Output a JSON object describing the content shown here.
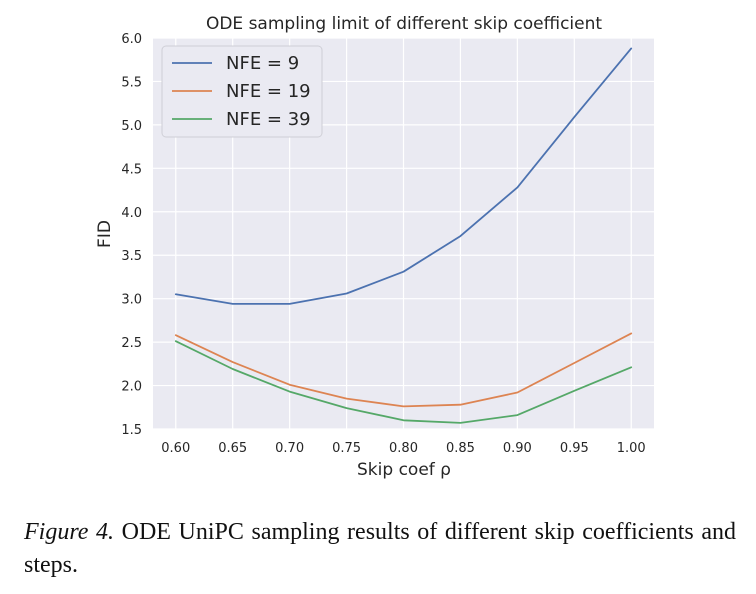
{
  "chart_data": {
    "type": "line",
    "title": "ODE sampling limit of different skip coefficient",
    "xlabel": "Skip coef ρ",
    "ylabel": "FID",
    "x": [
      0.6,
      0.65,
      0.7,
      0.75,
      0.8,
      0.85,
      0.9,
      0.95,
      1.0
    ],
    "x_tick_labels": [
      "0.60",
      "0.65",
      "0.70",
      "0.75",
      "0.80",
      "0.85",
      "0.90",
      "0.95",
      "1.00"
    ],
    "y_tick_labels": [
      "1.5",
      "2.0",
      "2.5",
      "3.0",
      "3.5",
      "4.0",
      "4.5",
      "5.0",
      "5.5",
      "6.0"
    ],
    "y_ticks": [
      1.5,
      2.0,
      2.5,
      3.0,
      3.5,
      4.0,
      4.5,
      5.0,
      5.5,
      6.0
    ],
    "xlim": [
      0.58,
      1.02
    ],
    "ylim": [
      1.5,
      6.0
    ],
    "grid": true,
    "legend_position": "top-left",
    "series": [
      {
        "name": "NFE = 9",
        "color": "#4c72b0",
        "values": [
          3.05,
          2.94,
          2.94,
          3.06,
          3.31,
          3.72,
          4.28,
          5.09,
          5.88
        ]
      },
      {
        "name": "NFE = 19",
        "color": "#dd8452",
        "values": [
          2.58,
          2.27,
          2.01,
          1.85,
          1.76,
          1.78,
          1.92,
          2.26,
          2.6
        ]
      },
      {
        "name": "NFE = 39",
        "color": "#55a868",
        "values": [
          2.51,
          2.19,
          1.93,
          1.74,
          1.6,
          1.57,
          1.66,
          1.94,
          2.21
        ]
      }
    ]
  },
  "caption": {
    "label": "Figure 4.",
    "text": " ODE UniPC sampling results of different skip coefficients and steps."
  }
}
